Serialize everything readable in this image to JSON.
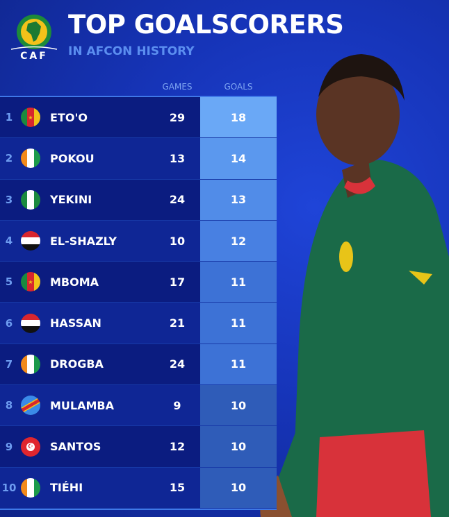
{
  "header": {
    "title": "TOP GOALSCORERS",
    "subtitle": "IN AFCON HISTORY",
    "logo_text": "CAF"
  },
  "columns": {
    "games": "GAMES",
    "goals": "GOALS"
  },
  "rows": [
    {
      "rank": "1",
      "name": "ETO'O",
      "country": "Cameroon",
      "games": "29",
      "goals": "18",
      "goals_color": "#6aa8f6"
    },
    {
      "rank": "2",
      "name": "POKOU",
      "country": "Ivory Coast",
      "games": "13",
      "goals": "14",
      "goals_color": "#5b98ee"
    },
    {
      "rank": "3",
      "name": "YEKINI",
      "country": "Nigeria",
      "games": "24",
      "goals": "13",
      "goals_color": "#518ce8"
    },
    {
      "rank": "4",
      "name": "EL-SHAZLY",
      "country": "Egypt",
      "games": "10",
      "goals": "12",
      "goals_color": "#4880e2"
    },
    {
      "rank": "5",
      "name": "MBOMA",
      "country": "Cameroon",
      "games": "17",
      "goals": "11",
      "goals_color": "#3d72d6"
    },
    {
      "rank": "6",
      "name": "HASSAN",
      "country": "Egypt",
      "games": "21",
      "goals": "11",
      "goals_color": "#3d72d6"
    },
    {
      "rank": "7",
      "name": "DROGBA",
      "country": "Ivory Coast",
      "games": "24",
      "goals": "11",
      "goals_color": "#3d72d6"
    },
    {
      "rank": "8",
      "name": "MULAMBA",
      "country": "DR Congo",
      "games": "9",
      "goals": "10",
      "goals_color": "#2f5cb8"
    },
    {
      "rank": "9",
      "name": "SANTOS",
      "country": "Tunisia",
      "games": "12",
      "goals": "10",
      "goals_color": "#2f5cb8"
    },
    {
      "rank": "10",
      "name": "TIÉHI",
      "country": "Ivory Coast",
      "games": "15",
      "goals": "10",
      "goals_color": "#2f5cb8"
    }
  ]
}
